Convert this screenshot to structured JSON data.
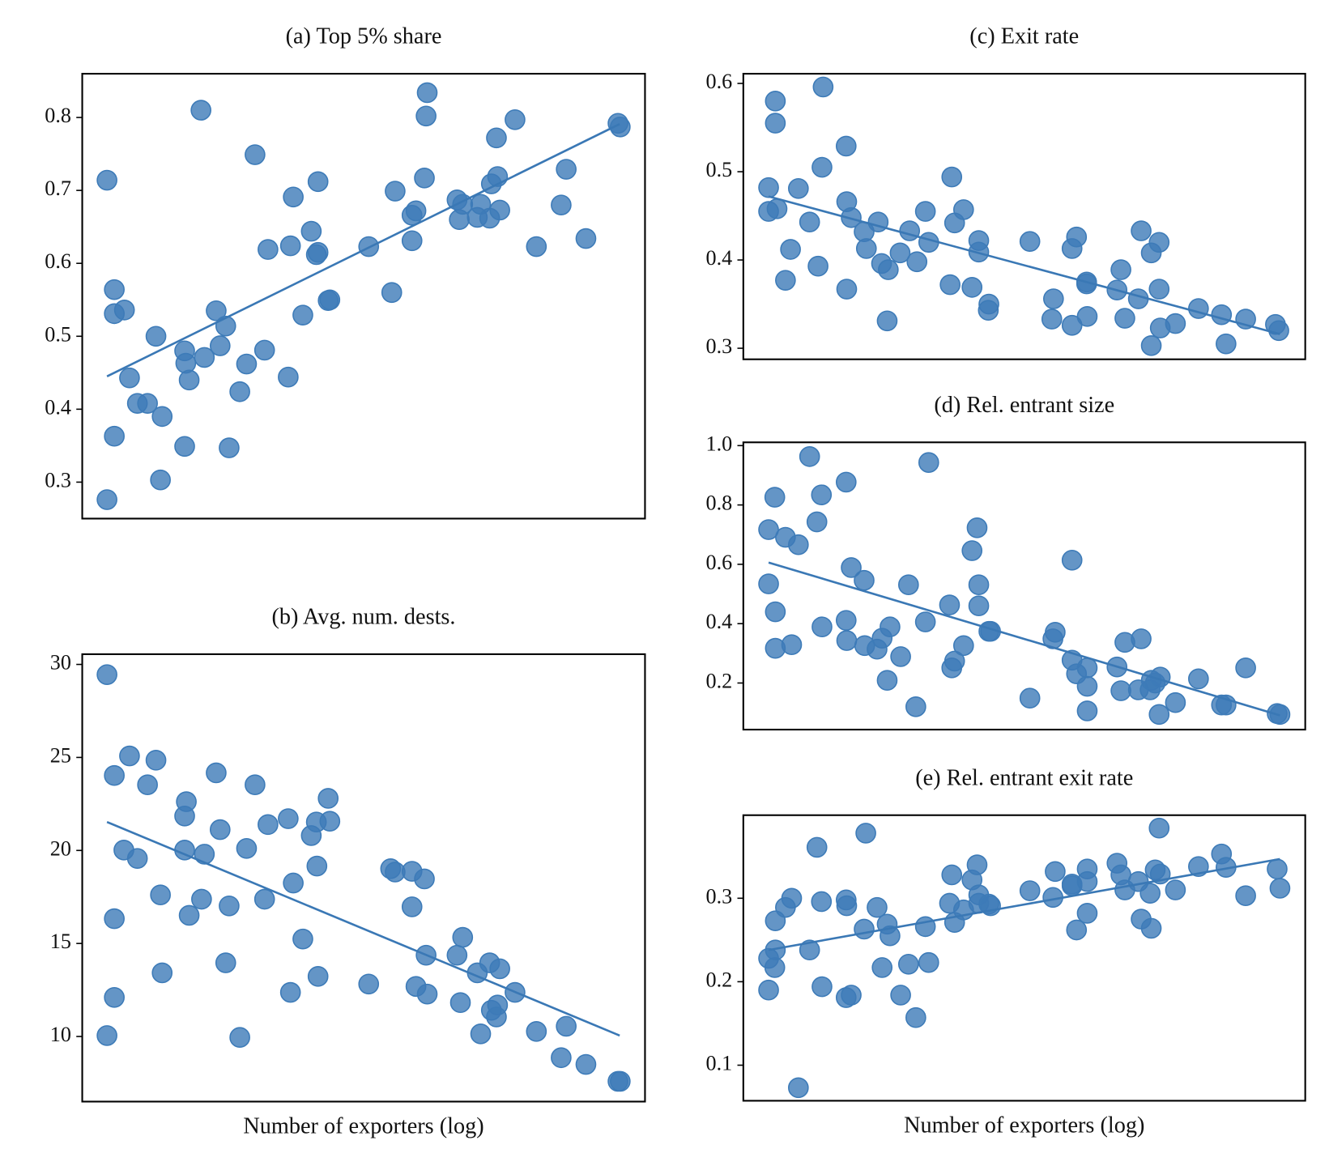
{
  "chart_data": [
    {
      "type": "scatter",
      "title": "(a) Top 5% share",
      "color": "#3d7bb8",
      "xlim": [
        0,
        1
      ],
      "ylim": [
        0.25,
        0.86
      ],
      "yticks": [
        0.3,
        0.4,
        0.5,
        0.6,
        0.7,
        0.8
      ],
      "x": [
        0.044,
        0.044,
        0.057,
        0.057,
        0.057,
        0.075,
        0.084,
        0.098,
        0.116,
        0.131,
        0.142,
        0.139,
        0.182,
        0.184,
        0.19,
        0.182,
        0.211,
        0.217,
        0.238,
        0.245,
        0.255,
        0.261,
        0.28,
        0.292,
        0.307,
        0.324,
        0.33,
        0.366,
        0.37,
        0.375,
        0.392,
        0.407,
        0.416,
        0.419,
        0.419,
        0.437,
        0.44,
        0.509,
        0.55,
        0.556,
        0.586,
        0.586,
        0.593,
        0.608,
        0.611,
        0.613,
        0.666,
        0.67,
        0.676,
        0.702,
        0.708,
        0.724,
        0.727,
        0.738,
        0.736,
        0.742,
        0.769,
        0.807,
        0.851,
        0.86,
        0.895,
        0.952,
        0.956
      ],
      "y": [
        0.714,
        0.276,
        0.564,
        0.531,
        0.363,
        0.536,
        0.443,
        0.408,
        0.408,
        0.5,
        0.39,
        0.303,
        0.48,
        0.463,
        0.44,
        0.349,
        0.81,
        0.471,
        0.535,
        0.487,
        0.514,
        0.347,
        0.424,
        0.462,
        0.749,
        0.481,
        0.619,
        0.444,
        0.624,
        0.691,
        0.529,
        0.644,
        0.612,
        0.615,
        0.712,
        0.549,
        0.55,
        0.623,
        0.56,
        0.699,
        0.631,
        0.666,
        0.672,
        0.717,
        0.802,
        0.834,
        0.687,
        0.66,
        0.681,
        0.663,
        0.681,
        0.662,
        0.709,
        0.719,
        0.772,
        0.673,
        0.797,
        0.623,
        0.68,
        0.729,
        0.634,
        0.792,
        0.787
      ],
      "fit": {
        "x": [
          0.044,
          0.955
        ],
        "y": [
          0.445,
          0.791
        ]
      }
    },
    {
      "type": "scatter",
      "title": "(b) Avg. num. dests.",
      "xlabel": "Number of exporters (log)",
      "color": "#3d7bb8",
      "xlim": [
        0,
        1
      ],
      "ylim": [
        6.5,
        30.55
      ],
      "yticks": [
        10,
        15,
        20,
        25,
        30
      ],
      "x": [
        0.044,
        0.044,
        0.057,
        0.057,
        0.057,
        0.074,
        0.084,
        0.098,
        0.116,
        0.131,
        0.139,
        0.142,
        0.182,
        0.185,
        0.182,
        0.19,
        0.212,
        0.217,
        0.238,
        0.245,
        0.255,
        0.261,
        0.28,
        0.292,
        0.307,
        0.324,
        0.33,
        0.366,
        0.37,
        0.375,
        0.392,
        0.407,
        0.416,
        0.417,
        0.419,
        0.437,
        0.44,
        0.509,
        0.548,
        0.556,
        0.586,
        0.586,
        0.593,
        0.608,
        0.611,
        0.613,
        0.666,
        0.676,
        0.672,
        0.702,
        0.708,
        0.724,
        0.727,
        0.738,
        0.742,
        0.736,
        0.769,
        0.807,
        0.851,
        0.86,
        0.895,
        0.952,
        0.956
      ],
      "y": [
        29.45,
        10.05,
        24.03,
        16.33,
        12.1,
        20.02,
        25.08,
        19.57,
        23.53,
        24.85,
        17.61,
        13.42,
        20.02,
        22.62,
        21.85,
        16.51,
        17.38,
        19.8,
        24.17,
        21.12,
        13.96,
        17.02,
        9.95,
        20.11,
        23.53,
        17.38,
        21.39,
        21.71,
        12.37,
        18.25,
        15.24,
        20.8,
        21.53,
        19.16,
        13.23,
        22.8,
        21.57,
        12.82,
        19.02,
        18.84,
        18.88,
        16.97,
        12.69,
        18.47,
        14.37,
        12.28,
        14.37,
        15.33,
        11.82,
        13.42,
        10.14,
        13.96,
        11.41,
        11.69,
        13.64,
        11.05,
        12.37,
        10.27,
        8.86,
        10.55,
        8.5,
        7.59,
        7.59
      ],
      "fit": {
        "x": [
          0.044,
          0.955
        ],
        "y": [
          21.53,
          10.05
        ]
      }
    },
    {
      "type": "scatter",
      "title": "(c) Exit rate",
      "color": "#3d7bb8",
      "xlim": [
        0,
        1
      ],
      "ylim": [
        0.2875,
        0.611
      ],
      "yticks": [
        0.3,
        0.4,
        0.5,
        0.6
      ],
      "x": [
        0.045,
        0.045,
        0.057,
        0.057,
        0.06,
        0.075,
        0.084,
        0.098,
        0.118,
        0.133,
        0.14,
        0.142,
        0.183,
        0.184,
        0.184,
        0.192,
        0.215,
        0.219,
        0.24,
        0.246,
        0.258,
        0.256,
        0.279,
        0.296,
        0.309,
        0.324,
        0.33,
        0.368,
        0.371,
        0.376,
        0.392,
        0.407,
        0.419,
        0.419,
        0.437,
        0.436,
        0.51,
        0.552,
        0.549,
        0.585,
        0.585,
        0.593,
        0.611,
        0.611,
        0.612,
        0.665,
        0.672,
        0.679,
        0.703,
        0.708,
        0.726,
        0.726,
        0.74,
        0.74,
        0.742,
        0.769,
        0.81,
        0.851,
        0.859,
        0.894,
        0.947,
        0.953
      ],
      "y": [
        0.482,
        0.455,
        0.58,
        0.555,
        0.458,
        0.377,
        0.412,
        0.481,
        0.443,
        0.393,
        0.505,
        0.596,
        0.529,
        0.367,
        0.466,
        0.448,
        0.432,
        0.413,
        0.443,
        0.396,
        0.389,
        0.331,
        0.408,
        0.433,
        0.398,
        0.455,
        0.42,
        0.372,
        0.494,
        0.442,
        0.457,
        0.369,
        0.422,
        0.409,
        0.35,
        0.343,
        0.421,
        0.356,
        0.333,
        0.326,
        0.413,
        0.426,
        0.375,
        0.373,
        0.336,
        0.366,
        0.389,
        0.334,
        0.356,
        0.433,
        0.408,
        0.303,
        0.42,
        0.367,
        0.323,
        0.328,
        0.345,
        0.338,
        0.305,
        0.333,
        0.327,
        0.32
      ],
      "fit": {
        "x": [
          0.045,
          0.955
        ],
        "y": [
          0.472,
          0.316
        ]
      }
    },
    {
      "type": "scatter",
      "title": "(d) Rel. entrant size",
      "color": "#3d7bb8",
      "xlim": [
        0,
        1
      ],
      "ylim": [
        0.043,
        1.011
      ],
      "yticks": [
        0.2,
        0.4,
        0.6,
        0.8,
        {
          "value": 1,
          "label": "1.0"
        }
      ],
      "x": [
        0.045,
        0.045,
        0.056,
        0.057,
        0.057,
        0.075,
        0.086,
        0.098,
        0.118,
        0.131,
        0.139,
        0.14,
        0.183,
        0.183,
        0.184,
        0.192,
        0.215,
        0.216,
        0.238,
        0.247,
        0.261,
        0.256,
        0.28,
        0.294,
        0.307,
        0.324,
        0.33,
        0.367,
        0.371,
        0.376,
        0.392,
        0.407,
        0.416,
        0.419,
        0.419,
        0.437,
        0.44,
        0.51,
        0.551,
        0.555,
        0.585,
        0.585,
        0.593,
        0.612,
        0.612,
        0.612,
        0.665,
        0.672,
        0.679,
        0.703,
        0.708,
        0.724,
        0.726,
        0.733,
        0.74,
        0.742,
        0.769,
        0.81,
        0.851,
        0.859,
        0.894,
        0.95,
        0.955
      ],
      "y": [
        0.534,
        0.717,
        0.826,
        0.44,
        0.317,
        0.691,
        0.329,
        0.666,
        0.963,
        0.743,
        0.834,
        0.389,
        0.411,
        0.877,
        0.343,
        0.589,
        0.546,
        0.326,
        0.314,
        0.351,
        0.389,
        0.209,
        0.289,
        0.531,
        0.12,
        0.406,
        0.943,
        0.463,
        0.251,
        0.274,
        0.326,
        0.646,
        0.723,
        0.531,
        0.46,
        0.374,
        0.374,
        0.149,
        0.349,
        0.371,
        0.614,
        0.277,
        0.231,
        0.251,
        0.189,
        0.106,
        0.254,
        0.174,
        0.337,
        0.177,
        0.349,
        0.177,
        0.209,
        0.2,
        0.094,
        0.22,
        0.134,
        0.214,
        0.126,
        0.126,
        0.251,
        0.097,
        0.094
      ],
      "fit": {
        "x": [
          0.045,
          0.955
        ],
        "y": [
          0.606,
          0.091
        ]
      }
    },
    {
      "type": "scatter",
      "title": "(e) Rel. entrant exit rate",
      "xlabel": "Number of exporters (log)",
      "color": "#3d7bb8",
      "xlim": [
        0,
        1
      ],
      "ylim": [
        0.0574,
        0.3995
      ],
      "yticks": [
        0.1,
        0.2,
        0.3
      ],
      "x": [
        0.045,
        0.045,
        0.056,
        0.057,
        0.057,
        0.075,
        0.086,
        0.098,
        0.118,
        0.131,
        0.139,
        0.14,
        0.183,
        0.183,
        0.184,
        0.192,
        0.215,
        0.218,
        0.238,
        0.247,
        0.256,
        0.261,
        0.28,
        0.294,
        0.307,
        0.324,
        0.33,
        0.367,
        0.371,
        0.376,
        0.392,
        0.407,
        0.416,
        0.419,
        0.419,
        0.437,
        0.44,
        0.51,
        0.551,
        0.555,
        0.585,
        0.585,
        0.593,
        0.612,
        0.612,
        0.612,
        0.665,
        0.672,
        0.679,
        0.703,
        0.708,
        0.724,
        0.726,
        0.733,
        0.74,
        0.742,
        0.769,
        0.81,
        0.851,
        0.859,
        0.894,
        0.95,
        0.955
      ],
      "y": [
        0.228,
        0.19,
        0.217,
        0.273,
        0.238,
        0.289,
        0.3,
        0.073,
        0.238,
        0.361,
        0.296,
        0.194,
        0.181,
        0.298,
        0.291,
        0.184,
        0.263,
        0.378,
        0.289,
        0.217,
        0.269,
        0.255,
        0.184,
        0.221,
        0.157,
        0.266,
        0.223,
        0.294,
        0.328,
        0.271,
        0.286,
        0.322,
        0.34,
        0.304,
        0.294,
        0.293,
        0.291,
        0.309,
        0.301,
        0.332,
        0.317,
        0.315,
        0.262,
        0.335,
        0.32,
        0.282,
        0.342,
        0.328,
        0.31,
        0.32,
        0.275,
        0.306,
        0.264,
        0.334,
        0.384,
        0.329,
        0.31,
        0.338,
        0.353,
        0.337,
        0.303,
        0.335,
        0.312
      ],
      "fit": {
        "x": [
          0.045,
          0.955
        ],
        "y": [
          0.238,
          0.347
        ]
      }
    }
  ]
}
